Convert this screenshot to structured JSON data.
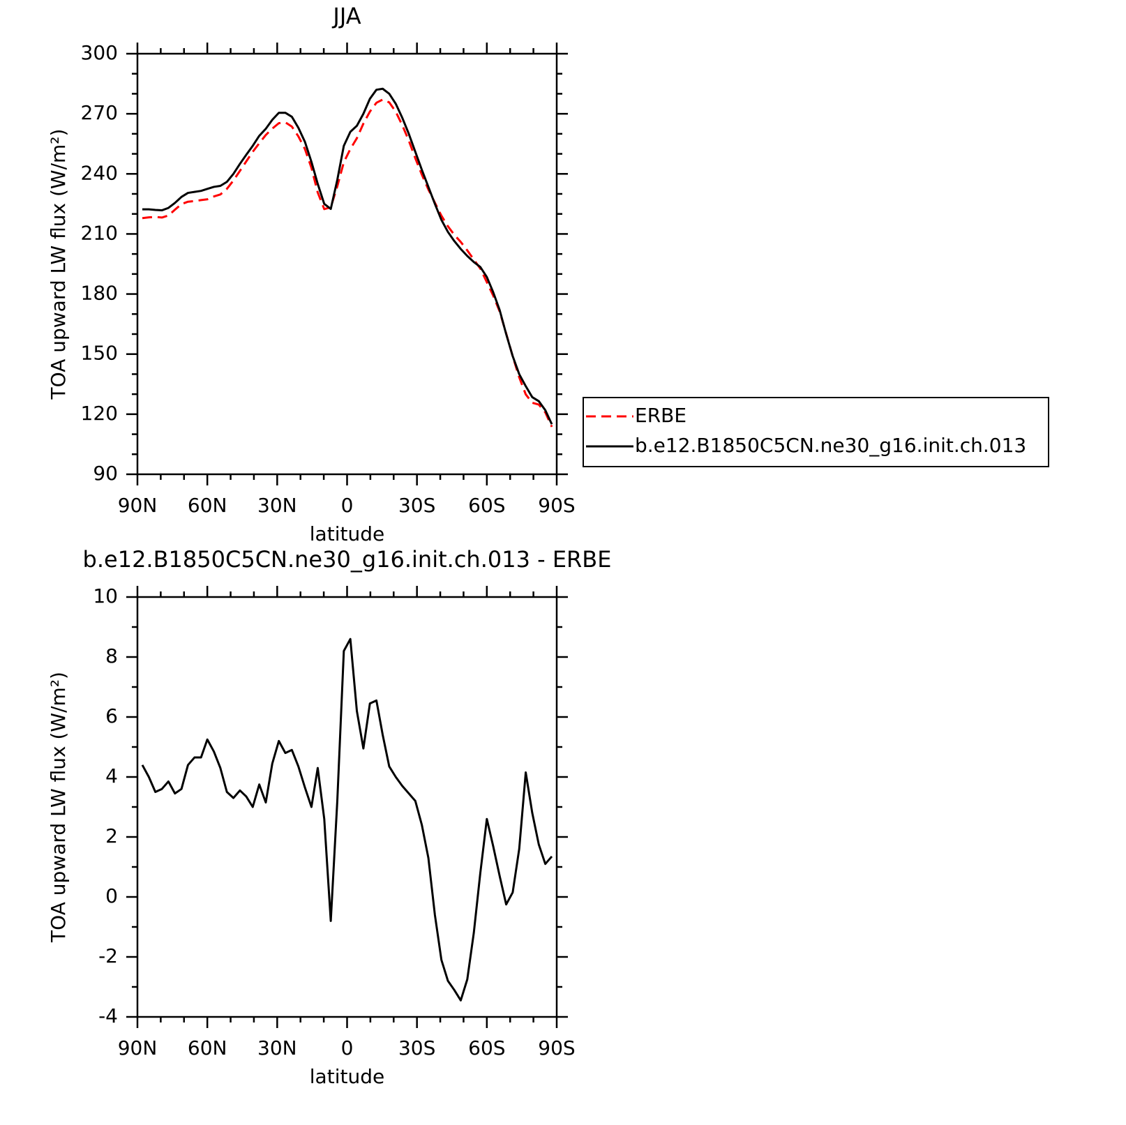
{
  "chart_data": [
    {
      "type": "line",
      "title": "JJA",
      "xlabel": "latitude",
      "ylabel": "TOA upward LW flux (W/m²)",
      "x": [
        87.9,
        85.1,
        82.3,
        79.5,
        76.7,
        73.9,
        71.1,
        68.3,
        65.5,
        62.7,
        60.0,
        57.2,
        54.4,
        51.6,
        48.8,
        46.0,
        43.3,
        40.5,
        37.7,
        34.9,
        32.1,
        29.3,
        26.5,
        23.7,
        20.9,
        18.1,
        15.3,
        12.6,
        9.8,
        7.0,
        4.2,
        1.4,
        -1.4,
        -4.2,
        -7.0,
        -9.8,
        -12.6,
        -15.3,
        -18.1,
        -20.9,
        -23.7,
        -26.5,
        -29.3,
        -32.1,
        -34.9,
        -37.7,
        -40.5,
        -43.3,
        -46.0,
        -48.8,
        -51.6,
        -54.4,
        -57.2,
        -60.0,
        -62.7,
        -65.5,
        -68.3,
        -71.1,
        -73.9,
        -76.7,
        -79.5,
        -82.3,
        -85.1,
        -87.9
      ],
      "series": [
        {
          "name": "ERBE",
          "color": "#ff0000",
          "dash": "dashed",
          "values": [
            217.9,
            218.3,
            218.5,
            218.2,
            219.2,
            222.1,
            224.9,
            226.1,
            226.4,
            226.9,
            227.3,
            228.7,
            229.7,
            232.5,
            236.7,
            241.5,
            246.2,
            251.0,
            255.3,
            259.4,
            262.6,
            265.3,
            265.7,
            263.6,
            258.7,
            252.4,
            243.0,
            230.7,
            222.4,
            223.3,
            233.8,
            245.8,
            252.4,
            257.8,
            265.1,
            271.1,
            275.5,
            277.1,
            275.7,
            271.0,
            264.3,
            256.6,
            247.8,
            239.6,
            232.2,
            225.6,
            219.1,
            213.8,
            209.6,
            206.0,
            201.8,
            197.2,
            192.7,
            185.9,
            179.3,
            171.3,
            160.3,
            148.9,
            138.4,
            129.9,
            125.7,
            124.8,
            120.9,
            113.7
          ]
        },
        {
          "name": "b.e12.B1850C5CN.ne30_g16.init.ch.013",
          "color": "#000000",
          "dash": "solid",
          "values": [
            222.3,
            222.3,
            222.0,
            221.8,
            223.0,
            225.5,
            228.5,
            230.5,
            231.0,
            231.5,
            232.5,
            233.5,
            234.0,
            236.0,
            240.0,
            245.0,
            249.5,
            254.0,
            259.0,
            262.5,
            267.0,
            270.5,
            270.5,
            268.5,
            263.0,
            256.0,
            246.0,
            235.0,
            225.0,
            222.5,
            237.0,
            254.0,
            261.0,
            264.0,
            270.0,
            277.5,
            282.0,
            282.5,
            280.0,
            275.0,
            268.0,
            260.0,
            251.0,
            242.0,
            233.5,
            225.0,
            217.0,
            211.0,
            206.5,
            202.5,
            199.0,
            196.0,
            193.5,
            188.5,
            181.0,
            172.0,
            160.0,
            149.0,
            140.0,
            134.0,
            128.5,
            126.5,
            122.0,
            115.0
          ]
        }
      ],
      "xlim": [
        90,
        -90
      ],
      "xticks": [
        {
          "value": 90,
          "label": "90N"
        },
        {
          "value": 60,
          "label": "60N"
        },
        {
          "value": 30,
          "label": "30N"
        },
        0,
        {
          "value": -30,
          "label": "30S"
        },
        {
          "value": -60,
          "label": "60S"
        },
        {
          "value": -90,
          "label": "90S"
        }
      ],
      "xminorticks": [
        80,
        70,
        50,
        40,
        20,
        10,
        -10,
        -20,
        -40,
        -50,
        -70,
        -80
      ],
      "ylim": [
        90,
        300
      ],
      "yticks": [
        90,
        120,
        150,
        180,
        210,
        240,
        270,
        300
      ],
      "yminorticks": [
        100,
        110,
        130,
        140,
        160,
        170,
        190,
        200,
        220,
        230,
        250,
        260,
        280,
        290
      ],
      "grid": false,
      "legend": "right"
    },
    {
      "type": "line",
      "title": "b.e12.B1850C5CN.ne30_g16.init.ch.013 - ERBE",
      "xlabel": "latitude",
      "ylabel": "TOA upward LW flux (W/m²)",
      "x": [
        87.9,
        85.1,
        82.3,
        79.5,
        76.7,
        73.9,
        71.1,
        68.3,
        65.5,
        62.7,
        60.0,
        57.2,
        54.4,
        51.6,
        48.8,
        46.0,
        43.3,
        40.5,
        37.7,
        34.9,
        32.1,
        29.3,
        26.5,
        23.7,
        20.9,
        18.1,
        15.3,
        12.6,
        9.8,
        7.0,
        4.2,
        1.4,
        -1.4,
        -4.2,
        -7.0,
        -9.8,
        -12.6,
        -15.3,
        -18.1,
        -20.9,
        -23.7,
        -26.5,
        -29.3,
        -32.1,
        -34.9,
        -37.7,
        -40.5,
        -43.3,
        -46.0,
        -48.8,
        -51.6,
        -54.4,
        -57.2,
        -60.0,
        -62.7,
        -65.5,
        -68.3,
        -71.1,
        -73.9,
        -76.7,
        -79.5,
        -82.3,
        -85.1,
        -87.9
      ],
      "series": [
        {
          "color": "#000000",
          "dash": "solid",
          "values": [
            4.4,
            4.0,
            3.5,
            3.6,
            3.85,
            3.45,
            3.6,
            4.4,
            4.65,
            4.65,
            5.25,
            4.85,
            4.3,
            3.5,
            3.3,
            3.55,
            3.35,
            3.0,
            3.75,
            3.15,
            4.45,
            5.2,
            4.8,
            4.9,
            4.35,
            3.65,
            3.0,
            4.3,
            2.6,
            -0.8,
            3.2,
            8.2,
            8.6,
            6.2,
            4.95,
            6.45,
            6.55,
            5.4,
            4.35,
            4.0,
            3.7,
            3.45,
            3.2,
            2.4,
            1.3,
            -0.6,
            -2.1,
            -2.8,
            -3.1,
            -3.45,
            -2.75,
            -1.2,
            0.8,
            2.6,
            1.7,
            0.7,
            -0.25,
            0.15,
            1.6,
            4.15,
            2.8,
            1.75,
            1.1,
            1.35
          ]
        }
      ],
      "xlim": [
        90,
        -90
      ],
      "xticks": [
        {
          "value": 90,
          "label": "90N"
        },
        {
          "value": 60,
          "label": "60N"
        },
        {
          "value": 30,
          "label": "30N"
        },
        0,
        {
          "value": -30,
          "label": "30S"
        },
        {
          "value": -60,
          "label": "60S"
        },
        {
          "value": -90,
          "label": "90S"
        }
      ],
      "xminorticks": [
        80,
        70,
        50,
        40,
        20,
        10,
        -10,
        -20,
        -40,
        -50,
        -70,
        -80
      ],
      "ylim": [
        -4,
        10
      ],
      "yticks": [
        -4,
        -2,
        0,
        2,
        4,
        6,
        8,
        10
      ],
      "yminorticks": [
        -3,
        -1,
        1,
        3,
        5,
        7,
        9
      ],
      "grid": false
    }
  ]
}
